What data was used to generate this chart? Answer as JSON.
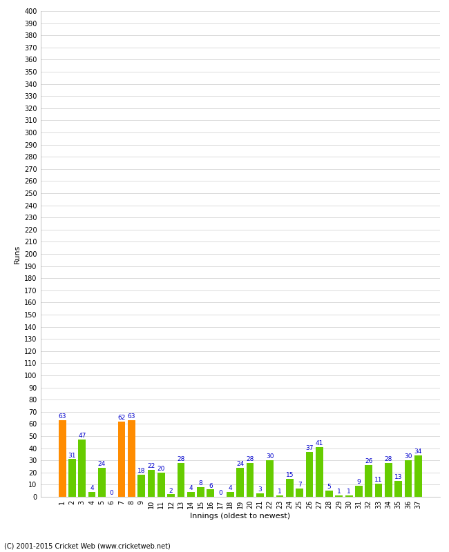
{
  "innings": [
    1,
    2,
    3,
    4,
    5,
    6,
    7,
    8,
    9,
    10,
    11,
    12,
    13,
    14,
    15,
    16,
    17,
    18,
    19,
    20,
    21,
    22,
    23,
    24,
    25,
    26,
    27,
    28,
    29,
    30,
    31,
    32,
    33,
    34,
    35,
    36,
    37
  ],
  "values": [
    63,
    31,
    47,
    4,
    24,
    0,
    62,
    63,
    18,
    22,
    20,
    2,
    28,
    4,
    8,
    6,
    0,
    4,
    24,
    28,
    3,
    30,
    1,
    15,
    7,
    37,
    41,
    5,
    1,
    1,
    9,
    26,
    11,
    28,
    13,
    30,
    34
  ],
  "colors": [
    "#ff8c00",
    "#66cc00",
    "#66cc00",
    "#66cc00",
    "#66cc00",
    "#66cc00",
    "#ff8c00",
    "#ff8c00",
    "#66cc00",
    "#66cc00",
    "#66cc00",
    "#66cc00",
    "#66cc00",
    "#66cc00",
    "#66cc00",
    "#66cc00",
    "#66cc00",
    "#66cc00",
    "#66cc00",
    "#66cc00",
    "#66cc00",
    "#66cc00",
    "#66cc00",
    "#66cc00",
    "#66cc00",
    "#66cc00",
    "#66cc00",
    "#66cc00",
    "#66cc00",
    "#66cc00",
    "#66cc00",
    "#66cc00",
    "#66cc00",
    "#66cc00",
    "#66cc00",
    "#66cc00",
    "#66cc00"
  ],
  "xlabel": "Innings (oldest to newest)",
  "ylabel": "Runs",
  "ylim": [
    0,
    400
  ],
  "ytick_step": 10,
  "ytick_label_step": 10,
  "label_color": "#0000cc",
  "background_color": "#ffffff",
  "grid_color": "#cccccc",
  "footer": "(C) 2001-2015 Cricket Web (www.cricketweb.net)",
  "bar_width": 0.75
}
